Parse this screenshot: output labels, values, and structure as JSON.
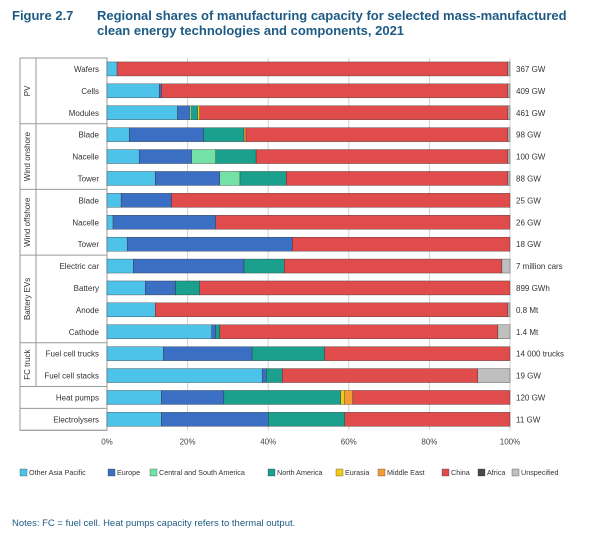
{
  "figure": {
    "number": "Figure 2.7",
    "title": "Regional shares of manufacturing capacity for selected mass-manufactured clean energy technologies and components, 2021",
    "notes": "Notes: FC = fuel cell. Heat pumps capacity refers to thermal output."
  },
  "chart_data": {
    "type": "bar",
    "orientation": "horizontal",
    "stacked": true,
    "xlim": [
      0,
      100
    ],
    "x_ticks": [
      "0%",
      "20%",
      "40%",
      "60%",
      "80%",
      "100%"
    ],
    "grid": true,
    "legend_position": "bottom",
    "groups": [
      {
        "label": "PV",
        "rows": [
          0,
          2
        ]
      },
      {
        "label": "Wind onshore",
        "rows": [
          3,
          5
        ]
      },
      {
        "label": "Wind offshore",
        "rows": [
          6,
          8
        ]
      },
      {
        "label": "Battery EVs",
        "rows": [
          9,
          12
        ]
      },
      {
        "label": "FC truck",
        "rows": [
          13,
          14
        ]
      },
      {
        "label": "",
        "rows": [
          15,
          15
        ]
      },
      {
        "label": "",
        "rows": [
          16,
          16
        ]
      }
    ],
    "categories": [
      "Wafers",
      "Cells",
      "Modules",
      "Blade",
      "Nacelle",
      "Tower",
      "Blade",
      "Nacelle",
      "Tower",
      "Electric car",
      "Battery",
      "Anode",
      "Cathode",
      "Fuel cell trucks",
      "Fuel cell stacks",
      "Heat pumps",
      "Electrolysers"
    ],
    "capacities": [
      "367 GW",
      "409 GW",
      "461 GW",
      "98 GW",
      "100 GW",
      "88 GW",
      "25 GW",
      "26 GW",
      "18 GW",
      "7 million cars",
      "899 GWh",
      "0.8 Mt",
      "1.4 Mt",
      "14 000 trucks",
      "19 GW",
      "120 GW",
      "11 GW"
    ],
    "series": [
      {
        "name": "Other Asia Pacific",
        "color": "#4ec3ea",
        "values": [
          2.5,
          13,
          17.5,
          5.5,
          8,
          12,
          3.5,
          1.5,
          5,
          6.5,
          9.5,
          12,
          26,
          14,
          38.5,
          13.5,
          13.5
        ]
      },
      {
        "name": "Europe",
        "color": "#3b6fc4",
        "values": [
          0,
          0.5,
          3,
          18.5,
          13,
          16,
          12.5,
          25.5,
          41,
          27.5,
          7.5,
          0,
          1,
          22,
          1,
          15.5,
          26.5
        ]
      },
      {
        "name": "Central and South America",
        "color": "#74e1a7",
        "values": [
          0,
          0,
          0.5,
          0,
          6,
          5,
          0,
          0,
          0,
          0,
          0,
          0,
          0,
          0,
          0,
          0,
          0
        ]
      },
      {
        "name": "North America",
        "color": "#1aa08c",
        "values": [
          0,
          0,
          1.5,
          10,
          10,
          11.5,
          0,
          0,
          0,
          10,
          6,
          0,
          1,
          18,
          4,
          29,
          19
        ]
      },
      {
        "name": "Eurasia",
        "color": "#f2c81b",
        "values": [
          0,
          0,
          0.5,
          0,
          0,
          0,
          0,
          0,
          0,
          0,
          0,
          0,
          0,
          0,
          0,
          1,
          0
        ]
      },
      {
        "name": "Middle East",
        "color": "#f39c35",
        "values": [
          0,
          0,
          0,
          0.5,
          0,
          0,
          0,
          0,
          0,
          0,
          0,
          0,
          0,
          0,
          0,
          2,
          0
        ]
      },
      {
        "name": "China",
        "color": "#e04b4b",
        "values": [
          97,
          86,
          76.5,
          65,
          62.5,
          55,
          84,
          73,
          54,
          54,
          77,
          87.5,
          69,
          46,
          48.5,
          39,
          41
        ]
      },
      {
        "name": "Africa",
        "color": "#4a4a4a",
        "values": [
          0,
          0,
          0,
          0,
          0,
          0,
          0,
          0,
          0,
          0,
          0,
          0,
          0,
          0,
          0,
          0,
          0
        ]
      },
      {
        "name": "Unspecified",
        "color": "#bfbfbf",
        "values": [
          0.5,
          0.5,
          0.5,
          0.5,
          0.5,
          0.5,
          0,
          0,
          0,
          2,
          0,
          0.5,
          3,
          0,
          8,
          0,
          0
        ]
      }
    ]
  }
}
